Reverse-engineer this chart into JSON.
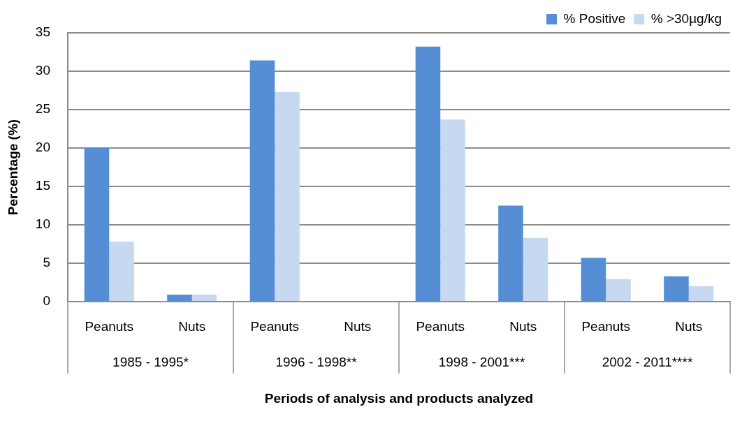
{
  "chart_data": {
    "type": "bar",
    "xlabel": "Periods of analysis and products analyzed",
    "ylabel": "Percentage (%)",
    "categories": [
      "Peanuts",
      "Nuts",
      "Peanuts",
      "Nuts",
      "Peanuts",
      "Nuts",
      "Peanuts",
      "Nuts"
    ],
    "series": [
      {
        "name": "% Positive",
        "color": "#558ed5",
        "values": [
          20,
          0.9,
          31.4,
          0,
          33.2,
          12.5,
          5.7,
          3.3
        ]
      },
      {
        "name": "% >30µg/kg",
        "color": "#c6d9f1",
        "values": [
          7.8,
          0.9,
          27.3,
          0,
          23.7,
          8.3,
          2.9,
          2.0
        ]
      }
    ],
    "ylim": [
      0,
      35
    ],
    "yticks": [
      0,
      5,
      10,
      15,
      20,
      25,
      30,
      35
    ],
    "grid": "y",
    "legend": "top right",
    "annotations": [
      "1985 - 1995*",
      "1996 - 1998**",
      "1998 - 2001***",
      "2002 - 2011****"
    ]
  }
}
